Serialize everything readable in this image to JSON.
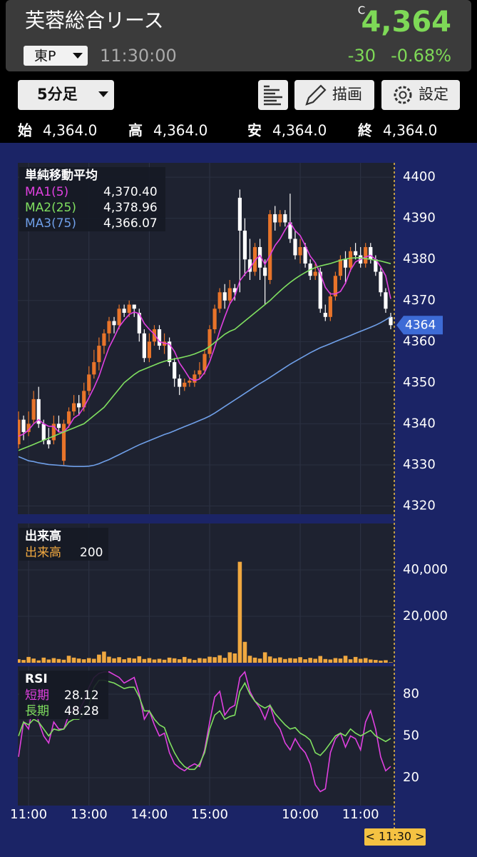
{
  "header": {
    "name": "芙蓉総合リース",
    "close_mark": "C",
    "price": "4,364",
    "market": "東P",
    "time": "11:30:00",
    "change": "-30",
    "change_pct": "-0.68%"
  },
  "toolbar": {
    "interval": "5分足",
    "draw": "描画",
    "settings": "設定"
  },
  "ohlc_row": [
    {
      "label": "始",
      "value": "4,364.0"
    },
    {
      "label": "高",
      "value": "4,364.0"
    },
    {
      "label": "安",
      "value": "4,364.0"
    },
    {
      "label": "終",
      "value": "4,364.0"
    }
  ],
  "chart_data": [
    {
      "type": "candlestick",
      "title": "単純移動平均",
      "categories": [
        null,
        null,
        "11:00",
        null,
        null,
        null,
        null,
        null,
        null,
        null,
        null,
        null,
        null,
        null,
        "13:00",
        null,
        null,
        null,
        null,
        null,
        null,
        null,
        null,
        null,
        null,
        null,
        "14:00",
        null,
        null,
        null,
        null,
        null,
        null,
        null,
        null,
        null,
        null,
        null,
        "15:00",
        null,
        null,
        null,
        null,
        null,
        null,
        null,
        null,
        null,
        null,
        null,
        null,
        null,
        null,
        null,
        null,
        null,
        "10:00",
        null,
        null,
        null,
        null,
        null,
        null,
        null,
        null,
        null,
        null,
        null,
        "11:00",
        null,
        null,
        null,
        null,
        null,
        null
      ],
      "open": [
        4335,
        4341,
        4338,
        4341,
        4346,
        4340,
        4336,
        4336,
        4340,
        4331,
        4340,
        4343,
        4345,
        4344,
        4348,
        4352,
        4355,
        4359,
        4362,
        4365,
        4364,
        4368,
        4367,
        4369,
        4367,
        4362,
        4356,
        4360,
        4363,
        4359,
        4360,
        4355,
        4351,
        4349,
        4350,
        4350,
        4352,
        4353,
        4357,
        4363,
        4368,
        4372,
        4370,
        4373,
        4395,
        4387,
        4380,
        4377,
        4383,
        4378,
        4375,
        4391,
        4389,
        4391,
        4389,
        4385,
        4381,
        4383,
        4379,
        4376,
        4377,
        4367,
        4366,
        4371,
        4376,
        4380,
        4378,
        4382,
        4381,
        4379,
        4383,
        4380,
        4377,
        4372,
        4366
      ],
      "high": [
        4343,
        4342,
        4343,
        4348,
        4349,
        4341,
        4339,
        4342,
        4342,
        4341,
        4344,
        4347,
        4347,
        4350,
        4354,
        4358,
        4361,
        4363,
        4366,
        4366,
        4369,
        4369,
        4370,
        4369,
        4368,
        4363,
        4362,
        4364,
        4364,
        4362,
        4361,
        4356,
        4352,
        4351,
        4351,
        4353,
        4355,
        4358,
        4364,
        4369,
        4373,
        4374,
        4375,
        4374,
        4397,
        4390,
        4385,
        4384,
        4385,
        4380,
        4392,
        4393,
        4392,
        4392,
        4396,
        4387,
        4385,
        4384,
        4380,
        4379,
        4378,
        4369,
        4372,
        4377,
        4381,
        4382,
        4383,
        4384,
        4383,
        4384,
        4384,
        4381,
        4378,
        4373,
        4367
      ],
      "low": [
        4334,
        4336,
        4337,
        4340,
        4339,
        4335,
        4334,
        4335,
        4338,
        4330,
        4339,
        4342,
        4342,
        4343,
        4347,
        4351,
        4353,
        4357,
        4360,
        4362,
        4363,
        4366,
        4366,
        4366,
        4360,
        4355,
        4355,
        4359,
        4358,
        4357,
        4354,
        4349,
        4347,
        4348,
        4349,
        4349,
        4351,
        4352,
        4356,
        4362,
        4367,
        4368,
        4369,
        4370,
        4372,
        4376,
        4375,
        4376,
        4375,
        4369,
        4374,
        4387,
        4388,
        4388,
        4384,
        4380,
        4379,
        4378,
        4375,
        4375,
        4367,
        4365,
        4365,
        4370,
        4375,
        4374,
        4377,
        4380,
        4378,
        4378,
        4379,
        4376,
        4371,
        4367,
        4363
      ],
      "close": [
        4341,
        4338,
        4340,
        4346,
        4340,
        4336,
        4335,
        4340,
        4339,
        4340,
        4343,
        4345,
        4344,
        4348,
        4352,
        4355,
        4359,
        4362,
        4365,
        4364,
        4368,
        4367,
        4369,
        4368,
        4362,
        4356,
        4360,
        4363,
        4359,
        4360,
        4355,
        4351,
        4349,
        4350,
        4350.5,
        4352,
        4353,
        4357,
        4363,
        4368,
        4372,
        4370,
        4373,
        4372,
        4387,
        4380,
        4377,
        4383,
        4378,
        4376,
        4391,
        4389,
        4391,
        4389,
        4385,
        4381,
        4383,
        4379,
        4376,
        4377,
        4368,
        4366,
        4371,
        4376,
        4380,
        4378,
        4382,
        4381,
        4379,
        4383,
        4380,
        4377,
        4372,
        4368,
        4364
      ],
      "up_color": "#e8742a",
      "down_color": "#ffffff",
      "ylim": [
        4318,
        4403.5
      ],
      "yticks": [
        4320,
        4330,
        4340,
        4350,
        4360,
        4370,
        4380,
        4390,
        4400
      ],
      "current_price": 4364,
      "current_color": "#3d6bd6",
      "series": [
        {
          "name": "MA1(5)",
          "color": "#e040e0",
          "legend_value": "4,370.40",
          "values": [
            4337,
            4337.5,
            4338.5,
            4340,
            4341,
            4340,
            4339.4,
            4339.4,
            4338,
            4338,
            4339.4,
            4341.4,
            4342.2,
            4344,
            4346.4,
            4348.8,
            4351.6,
            4355.2,
            4358.6,
            4361,
            4363.6,
            4365.2,
            4366.6,
            4367.2,
            4366.8,
            4364.4,
            4363,
            4361.8,
            4360,
            4359.6,
            4359.4,
            4357.6,
            4354.8,
            4353,
            4351.1,
            4350.5,
            4350.9,
            4352.5,
            4355.1,
            4358.6,
            4362.6,
            4366,
            4369.2,
            4371,
            4374.8,
            4376.4,
            4377.8,
            4379.8,
            4381,
            4378.8,
            4381,
            4383.4,
            4385,
            4387.2,
            4389,
            4387,
            4385.8,
            4383.4,
            4380.8,
            4379.2,
            4376.6,
            4373.2,
            4371.6,
            4371.6,
            4372.2,
            4374.2,
            4377.4,
            4379.4,
            4380,
            4380.6,
            4381,
            4380,
            4378.2,
            4376,
            4370.4
          ]
        },
        {
          "name": "MA2(25)",
          "color": "#80e060",
          "legend_value": "4,378.96",
          "values": [
            4333.5,
            4334,
            4334.5,
            4335,
            4335.5,
            4336,
            4336.5,
            4337,
            4337.5,
            4338,
            4338.5,
            4339,
            4339.5,
            4340,
            4341,
            4342,
            4343,
            4344,
            4345.5,
            4347,
            4348.5,
            4350,
            4351,
            4352,
            4352.8,
            4353.3,
            4353.8,
            4354.3,
            4354.8,
            4355.2,
            4355.5,
            4355.8,
            4356,
            4356.3,
            4356.6,
            4357,
            4357.5,
            4358,
            4358.8,
            4359.8,
            4360.8,
            4361.8,
            4362.5,
            4363,
            4364,
            4365,
            4366,
            4367,
            4368,
            4369,
            4370,
            4371.2,
            4372.3,
            4373.4,
            4374.4,
            4375.3,
            4376.1,
            4376.8,
            4377.5,
            4378,
            4378.4,
            4378.7,
            4379,
            4379.4,
            4379.8,
            4380.1,
            4380.3,
            4380.4,
            4380.4,
            4380.2,
            4380,
            4379.8,
            4379.6,
            4379.3,
            4378.96
          ]
        },
        {
          "name": "MA3(75)",
          "color": "#6f9fe8",
          "legend_value": "4,366.07",
          "values": [
            4332,
            4331.5,
            4331,
            4330.8,
            4330.5,
            4330.3,
            4330.1,
            4330,
            4329.9,
            4329.8,
            4329.7,
            4329.6,
            4329.6,
            4329.6,
            4329.7,
            4329.9,
            4330.3,
            4330.8,
            4331.3,
            4331.9,
            4332.5,
            4333.1,
            4333.7,
            4334.3,
            4334.9,
            4335.4,
            4335.9,
            4336.4,
            4336.9,
            4337.4,
            4337.8,
            4338.3,
            4338.8,
            4339.3,
            4339.8,
            4340.3,
            4340.8,
            4341.3,
            4341.9,
            4342.6,
            4343.4,
            4344.2,
            4345,
            4345.8,
            4346.6,
            4347.4,
            4348.2,
            4349,
            4349.8,
            4350.5,
            4351.3,
            4352.1,
            4352.9,
            4353.7,
            4354.5,
            4355.2,
            4355.9,
            4356.6,
            4357.3,
            4357.9,
            4358.5,
            4359,
            4359.5,
            4360,
            4360.5,
            4361,
            4361.5,
            4362,
            4362.5,
            4363,
            4363.5,
            4364,
            4364.6,
            4365.3,
            4366.07
          ]
        }
      ]
    },
    {
      "type": "bar",
      "title": "出来高",
      "ylim": [
        0,
        60000
      ],
      "yticks": [
        {
          "value": 20000,
          "label": "20,000"
        },
        {
          "value": 40000,
          "label": "40,000"
        }
      ],
      "series": [
        {
          "name": "出来高",
          "color": "#f0a840",
          "legend_value": "200",
          "values": [
            1500,
            1200,
            2500,
            1800,
            1000,
            2200,
            1400,
            2000,
            1600,
            1300,
            3000,
            2200,
            1800,
            1500,
            2000,
            1700,
            3500,
            4800,
            2600,
            1900,
            2400,
            1500,
            2100,
            1800,
            2800,
            1600,
            2000,
            1400,
            1700,
            1300,
            2200,
            1900,
            1500,
            2500,
            1700,
            1200,
            2000,
            1800,
            2600,
            2400,
            3200,
            2100,
            4500,
            4000,
            43500,
            9000,
            3000,
            2200,
            1800,
            4500,
            2700,
            1900,
            2300,
            1600,
            2000,
            1800,
            2400,
            1500,
            2100,
            1700,
            2900,
            1600,
            1400,
            2000,
            1800,
            3000,
            1500,
            2500,
            1700,
            2000,
            1400,
            1200,
            900,
            1100,
            200
          ]
        }
      ]
    },
    {
      "type": "line",
      "title": "RSI",
      "ylim": [
        0,
        100
      ],
      "yticks": [
        20,
        50,
        80
      ],
      "series": [
        {
          "name": "短期",
          "color": "#e040e0",
          "legend_value": "28.12",
          "values": [
            35,
            60,
            55,
            75,
            60,
            50,
            45,
            60,
            55,
            55,
            65,
            70,
            68,
            75,
            85,
            92,
            95,
            96,
            96,
            94,
            92,
            88,
            90,
            92,
            80,
            62,
            68,
            58,
            50,
            52,
            38,
            30,
            27,
            25,
            28,
            30,
            28,
            40,
            60,
            78,
            82,
            65,
            70,
            72,
            92,
            96,
            82,
            75,
            70,
            62,
            72,
            60,
            55,
            45,
            40,
            48,
            42,
            38,
            30,
            15,
            10,
            12,
            38,
            48,
            52,
            42,
            50,
            48,
            40,
            60,
            68,
            55,
            35,
            25,
            28.12
          ]
        },
        {
          "name": "長期",
          "color": "#80e060",
          "legend_value": "48.28",
          "values": [
            50,
            60,
            58,
            62,
            60,
            55,
            50,
            55,
            54,
            55,
            60,
            62,
            62,
            66,
            72,
            85,
            90,
            90,
            89,
            88,
            86,
            84,
            85,
            85,
            78,
            68,
            68,
            62,
            58,
            56,
            46,
            38,
            32,
            28,
            26,
            26,
            30,
            38,
            55,
            65,
            68,
            62,
            64,
            65,
            82,
            88,
            80,
            75,
            72,
            70,
            72,
            66,
            62,
            58,
            55,
            56,
            52,
            50,
            47,
            38,
            36,
            40,
            45,
            50,
            52,
            50,
            55,
            52,
            50,
            52,
            54,
            50,
            48,
            46,
            48.28
          ]
        }
      ]
    }
  ],
  "cursor_label": "< 11:30 >"
}
